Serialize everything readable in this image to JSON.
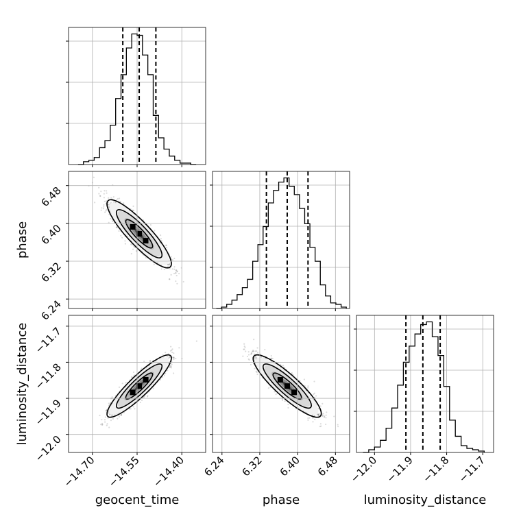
{
  "chart_data": {
    "type": "corner",
    "parameters": [
      "geocent_time",
      "phase",
      "luminosity_distance"
    ],
    "grid": true,
    "panels": [
      {
        "kind": "histogram",
        "parameter": "geocent_time",
        "xlim": [
          -14.78,
          -14.32
        ],
        "bins": [
          -14.748,
          -14.73,
          -14.712,
          -14.694,
          -14.676,
          -14.658,
          -14.64,
          -14.622,
          -14.604,
          -14.586,
          -14.568,
          -14.55,
          -14.532,
          -14.514,
          -14.496,
          -14.478,
          -14.46,
          -14.442,
          -14.424,
          -14.406,
          -14.388,
          -14.37,
          -14.352
        ],
        "counts": [
          0,
          2,
          3,
          5,
          12,
          17,
          28,
          47,
          64,
          83,
          93,
          92,
          78,
          64,
          35,
          19,
          11,
          6,
          3,
          1,
          1,
          0
        ],
        "quantiles": [
          -14.598,
          -14.543,
          -14.487
        ]
      },
      {
        "kind": "histogram",
        "parameter": "phase",
        "xlim": [
          6.22,
          6.51
        ],
        "bins": [
          6.228,
          6.239,
          6.25,
          6.261,
          6.272,
          6.283,
          6.294,
          6.305,
          6.316,
          6.327,
          6.338,
          6.349,
          6.36,
          6.371,
          6.382,
          6.393,
          6.404,
          6.415,
          6.426,
          6.437,
          6.448,
          6.459,
          6.47,
          6.481,
          6.492,
          6.503
        ],
        "counts": [
          0,
          1,
          3,
          6,
          10,
          15,
          21,
          34,
          46,
          59,
          76,
          85,
          91,
          94,
          88,
          82,
          72,
          61,
          44,
          34,
          17,
          9,
          4,
          3,
          1
        ],
        "quantiles": [
          6.334,
          6.378,
          6.422
        ]
      },
      {
        "kind": "histogram",
        "parameter": "luminosity_distance",
        "xlim": [
          -12.05,
          -11.67
        ],
        "bins": [
          -12.032,
          -12.016,
          -12.0,
          -11.984,
          -11.968,
          -11.952,
          -11.936,
          -11.92,
          -11.904,
          -11.888,
          -11.872,
          -11.856,
          -11.84,
          -11.824,
          -11.808,
          -11.792,
          -11.776,
          -11.76,
          -11.744,
          -11.728,
          -11.712,
          -11.696
        ],
        "counts": [
          0,
          2,
          4,
          9,
          18,
          33,
          50,
          67,
          79,
          88,
          95,
          97,
          86,
          72,
          49,
          24,
          12,
          5,
          3,
          2,
          1
        ],
        "quantiles": [
          -11.913,
          -11.866,
          -11.818
        ]
      },
      {
        "kind": "2d",
        "x": "geocent_time",
        "y": "phase",
        "xlim": [
          -14.78,
          -14.32
        ],
        "ylim": [
          6.22,
          6.51
        ],
        "correlation": "negative",
        "center": [
          -14.543,
          6.378
        ],
        "spread": [
          0.045,
          0.03
        ]
      },
      {
        "kind": "2d",
        "x": "geocent_time",
        "y": "luminosity_distance",
        "xlim": [
          -14.78,
          -14.32
        ],
        "ylim": [
          -12.05,
          -11.67
        ],
        "correlation": "positive",
        "center": [
          -14.543,
          -11.866
        ],
        "spread": [
          0.045,
          0.036
        ]
      },
      {
        "kind": "2d",
        "x": "phase",
        "y": "luminosity_distance",
        "xlim": [
          6.22,
          6.51
        ],
        "ylim": [
          -12.05,
          -11.67
        ],
        "correlation": "negative",
        "center": [
          6.378,
          -11.866
        ],
        "spread": [
          0.03,
          0.036
        ]
      }
    ],
    "ticks": {
      "geocent_time": {
        "values": [
          -14.7,
          -14.55,
          -14.4
        ],
        "labels": [
          "−14.70",
          "−14.55",
          "−14.40"
        ]
      },
      "phase": {
        "values": [
          6.24,
          6.32,
          6.4,
          6.48
        ],
        "labels": [
          "6.24",
          "6.32",
          "6.40",
          "6.48"
        ]
      },
      "luminosity_distance": {
        "values": [
          -12.0,
          -11.9,
          -11.8,
          -11.7
        ],
        "labels": [
          "−12.0",
          "−11.9",
          "−11.8",
          "−11.7"
        ]
      }
    },
    "xlabels": [
      "geocent_time",
      "phase",
      "luminosity_distance"
    ],
    "ylabels": [
      "",
      "phase",
      "luminosity_distance"
    ]
  }
}
